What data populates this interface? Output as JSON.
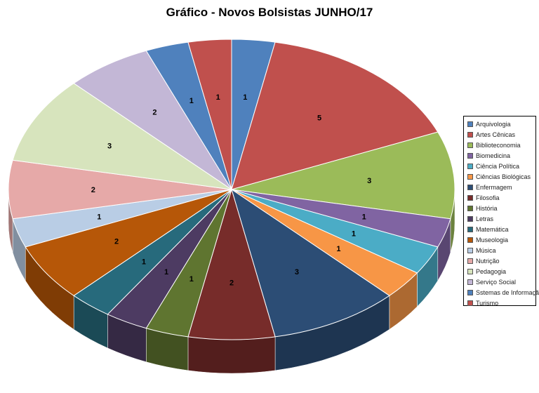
{
  "chart_data": {
    "type": "pie",
    "style": "3d",
    "title": "Gráfico - Novos Bolsistas JUNHO/17",
    "legend_position": "right",
    "categories": [
      "Arquivologia",
      "Artes Cênicas",
      "Biblioteconomia",
      "Biomedicina",
      "Ciência Política",
      "Ciências Biológicas",
      "Enfermagem",
      "Filosofia",
      "História",
      "Letras",
      "Matemática",
      "Museologia",
      "Música",
      "Nutrição",
      "Pedagogia",
      "Serviço Social",
      "Sstemas de Informação",
      "Turismo"
    ],
    "values": [
      1,
      5,
      3,
      1,
      1,
      1,
      3,
      2,
      1,
      1,
      1,
      2,
      1,
      2,
      3,
      2,
      1,
      1
    ],
    "colors": [
      "#4F81BD",
      "#C0504D",
      "#9BBB59",
      "#8064A2",
      "#4BACC6",
      "#F79646",
      "#2C4D75",
      "#772C2A",
      "#5F7530",
      "#4D3B62",
      "#276A7C",
      "#B65708",
      "#B9CDE5",
      "#E6A9A8",
      "#D7E4BD",
      "#C3B7D6",
      "#4F81BD",
      "#C0504D"
    ]
  }
}
